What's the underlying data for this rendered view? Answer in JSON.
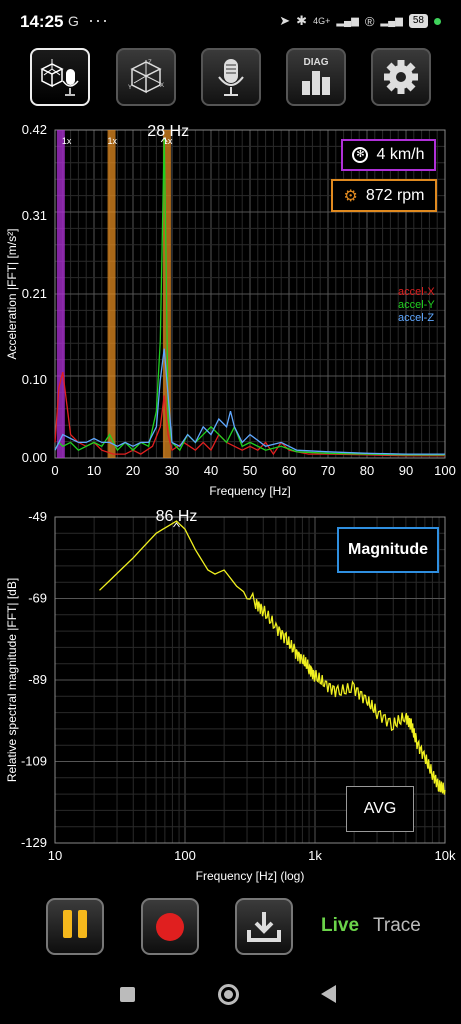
{
  "status_bar": {
    "time": "14:25",
    "left_icon": "G",
    "dots": "···",
    "network_label": "4G+",
    "battery": "58"
  },
  "toolbar": {
    "buttons": [
      {
        "name": "accel-mic-mode",
        "icon": "cube-mic-icon",
        "active": true
      },
      {
        "name": "accel-mode",
        "icon": "cube-axes-icon",
        "active": false
      },
      {
        "name": "mic-mode",
        "icon": "mic-icon",
        "active": false
      },
      {
        "name": "diag-mode",
        "icon": "diag-bars-icon",
        "label": "DIAG",
        "active": false
      },
      {
        "name": "settings",
        "icon": "gear-icon",
        "active": false
      }
    ]
  },
  "fft_chart": {
    "peak_label": "28 Hz",
    "harmonic_labels": [
      "1x",
      "1x",
      "1x"
    ],
    "speed": "4 km/h",
    "rpm": "872 rpm",
    "legend": [
      {
        "name": "accel-X",
        "color": "#e02020"
      },
      {
        "name": "accel-Y",
        "color": "#20d020"
      },
      {
        "name": "accel-Z",
        "color": "#60a8ff"
      }
    ]
  },
  "spectrum_chart": {
    "peak_label": "86 Hz",
    "mode": "Magnitude",
    "avg": "AVG"
  },
  "controls": {
    "live": "Live",
    "trace": "Trace"
  },
  "chart_data": [
    {
      "type": "line",
      "title": "",
      "xlabel": "Frequency [Hz]",
      "ylabel": "Acceleration |FFT| [m/s²]",
      "xlim": [
        0,
        100
      ],
      "ylim": [
        0,
        0.42
      ],
      "x_ticks": [
        0,
        10,
        20,
        30,
        40,
        50,
        60,
        70,
        80,
        90,
        100
      ],
      "y_ticks": [
        "0.00",
        "0.10",
        "0.21",
        "0.31",
        "0.42"
      ],
      "markers": [
        {
          "x": 1.5,
          "label": "1x",
          "color": "#b030d8"
        },
        {
          "x": 14.5,
          "label": "1x",
          "color": "#e08a20"
        },
        {
          "x": 28.7,
          "label": "1x",
          "color": "#e08a20"
        }
      ],
      "series": [
        {
          "name": "accel-X",
          "color": "#e02020",
          "x": [
            0,
            1,
            2,
            3,
            4,
            6,
            8,
            10,
            12,
            15,
            18,
            20,
            22,
            25,
            27,
            28,
            29,
            30,
            33,
            36,
            38,
            40,
            42,
            44,
            46,
            48,
            50,
            52,
            54,
            56,
            58,
            60,
            65,
            70,
            80,
            90,
            100
          ],
          "y": [
            0.02,
            0.09,
            0.11,
            0.07,
            0.03,
            0.02,
            0.015,
            0.02,
            0.01,
            0.005,
            0.005,
            0.01,
            0.005,
            0.015,
            0.04,
            0.08,
            0.03,
            0.01,
            0.02,
            0.01,
            0.02,
            0.01,
            0.03,
            0.02,
            0.015,
            0.01,
            0.015,
            0.01,
            0.02,
            0.005,
            0.02,
            0.01,
            0.005,
            0.005,
            0.004,
            0.003,
            0.003
          ]
        },
        {
          "name": "accel-Y",
          "color": "#20d020",
          "x": [
            0,
            1,
            2,
            4,
            6,
            8,
            10,
            12,
            14,
            16,
            18,
            20,
            22,
            24,
            26,
            27,
            28,
            28.5,
            29,
            30,
            32,
            34,
            36,
            38,
            40,
            42,
            44,
            46,
            48,
            50,
            54,
            58,
            62,
            70,
            80,
            90,
            100
          ],
          "y": [
            0.01,
            0.02,
            0.015,
            0.02,
            0.01,
            0.015,
            0.02,
            0.015,
            0.03,
            0.01,
            0.02,
            0.01,
            0.02,
            0.015,
            0.06,
            0.15,
            0.41,
            0.25,
            0.05,
            0.02,
            0.01,
            0.03,
            0.02,
            0.03,
            0.04,
            0.03,
            0.02,
            0.04,
            0.015,
            0.02,
            0.01,
            0.015,
            0.008,
            0.006,
            0.005,
            0.004,
            0.004
          ]
        },
        {
          "name": "accel-Z",
          "color": "#60a8ff",
          "x": [
            0,
            1,
            2,
            4,
            6,
            8,
            10,
            12,
            14,
            16,
            18,
            20,
            22,
            24,
            26,
            27,
            28,
            29,
            30,
            32,
            34,
            36,
            38,
            40,
            42,
            44,
            45,
            46,
            48,
            50,
            54,
            58,
            62,
            70,
            80,
            90,
            100
          ],
          "y": [
            0.01,
            0.02,
            0.03,
            0.025,
            0.02,
            0.02,
            0.025,
            0.02,
            0.02,
            0.015,
            0.02,
            0.015,
            0.02,
            0.02,
            0.04,
            0.1,
            0.14,
            0.08,
            0.02,
            0.015,
            0.03,
            0.02,
            0.04,
            0.03,
            0.05,
            0.04,
            0.06,
            0.04,
            0.02,
            0.03,
            0.015,
            0.02,
            0.01,
            0.008,
            0.006,
            0.005,
            0.005
          ]
        }
      ]
    },
    {
      "type": "line",
      "title": "",
      "xlabel": "Frequency [Hz] (log)",
      "ylabel": "Relative spectral magnitude |FFT| [dB]",
      "xscale": "log",
      "xlim": [
        10,
        10000
      ],
      "ylim": [
        -129,
        -49
      ],
      "x_ticks": [
        "10",
        "100",
        "1k",
        "10k"
      ],
      "y_ticks": [
        -49,
        -69,
        -89,
        -109,
        -129
      ],
      "series": [
        {
          "name": "",
          "color": "#f0f020",
          "x": [
            22,
            40,
            60,
            86,
            100,
            120,
            150,
            170,
            200,
            250,
            300,
            350,
            400,
            500,
            600,
            700,
            800,
            900,
            1000,
            1200,
            1500,
            2000,
            2500,
            3000,
            4000,
            5000,
            5500,
            6000,
            7000,
            8000,
            9000,
            10000
          ],
          "y": [
            -67,
            -59,
            -53,
            -50,
            -52,
            -57,
            -62,
            -63,
            -62,
            -66,
            -68,
            -70,
            -72,
            -76,
            -79,
            -82,
            -84,
            -86,
            -88,
            -90,
            -92,
            -91,
            -94,
            -97,
            -100,
            -98,
            -100,
            -104,
            -108,
            -112,
            -115,
            -116
          ]
        }
      ]
    }
  ]
}
